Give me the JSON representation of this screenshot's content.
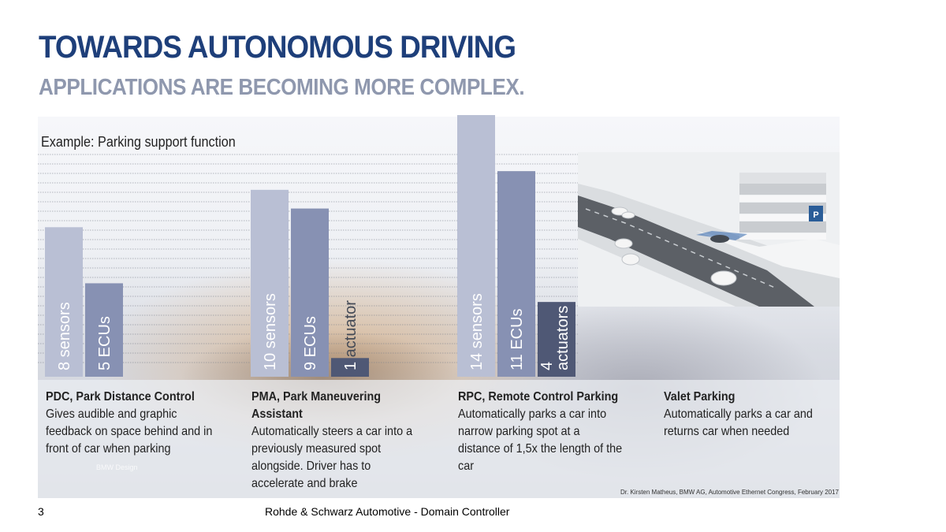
{
  "title": "TOWARDS AUTONOMOUS DRIVING",
  "subtitle": "APPLICATIONS ARE BECOMING MORE COMPLEX.",
  "example_label": "Example: Parking support function",
  "colors": {
    "title": "#1e3f7a",
    "subtitle": "#8f98ae",
    "sensors": "#b9bfd4",
    "ecus": "#8791b3",
    "actuators": "#4f5875"
  },
  "chart_data": {
    "type": "bar",
    "categories": [
      "PDC",
      "PMA",
      "RPC"
    ],
    "series": [
      {
        "name": "sensors",
        "values": [
          8,
          10,
          14
        ],
        "labels": [
          "8 sensors",
          "10 sensors",
          "14 sensors"
        ]
      },
      {
        "name": "ECUs",
        "values": [
          5,
          9,
          11
        ],
        "labels": [
          "5 ECUs",
          "9 ECUs",
          "11 ECUs"
        ]
      },
      {
        "name": "actuators",
        "values": [
          null,
          1,
          4
        ],
        "labels": [
          "",
          "1 actuator",
          "4 actuators"
        ]
      }
    ],
    "ylim": [
      0,
      14
    ],
    "grid": true
  },
  "descriptions": [
    {
      "title": "PDC, Park Distance Control",
      "lines": [
        "Gives audible and graphic",
        "feedback on space behind and in",
        "front of car when parking"
      ]
    },
    {
      "title": "PMA, Park Maneuvering Assistant",
      "title_lines": [
        "PMA, Park Maneuvering",
        "Assistant"
      ],
      "lines": [
        "Automatically steers a car into a",
        "previously measured spot",
        "alongside. Driver has to",
        "accelerate and brake"
      ]
    },
    {
      "title": "RPC, Remote Control Parking",
      "lines": [
        "Automatically parks a car into",
        "narrow parking spot at a",
        "distance of 1,5x the length of the",
        "car"
      ]
    },
    {
      "title": "Valet Parking",
      "lines": [
        "Automatically parks a car and",
        "returns car when needed"
      ]
    }
  ],
  "image_watermark": "BMW Design",
  "photo_sign": "P",
  "credit": "Dr. Kirsten Matheus, BMW AG, Automotive Ethernet Congress, February 2017",
  "page_number": "3",
  "footer": "Rohde & Schwarz Automotive - Domain Controller"
}
